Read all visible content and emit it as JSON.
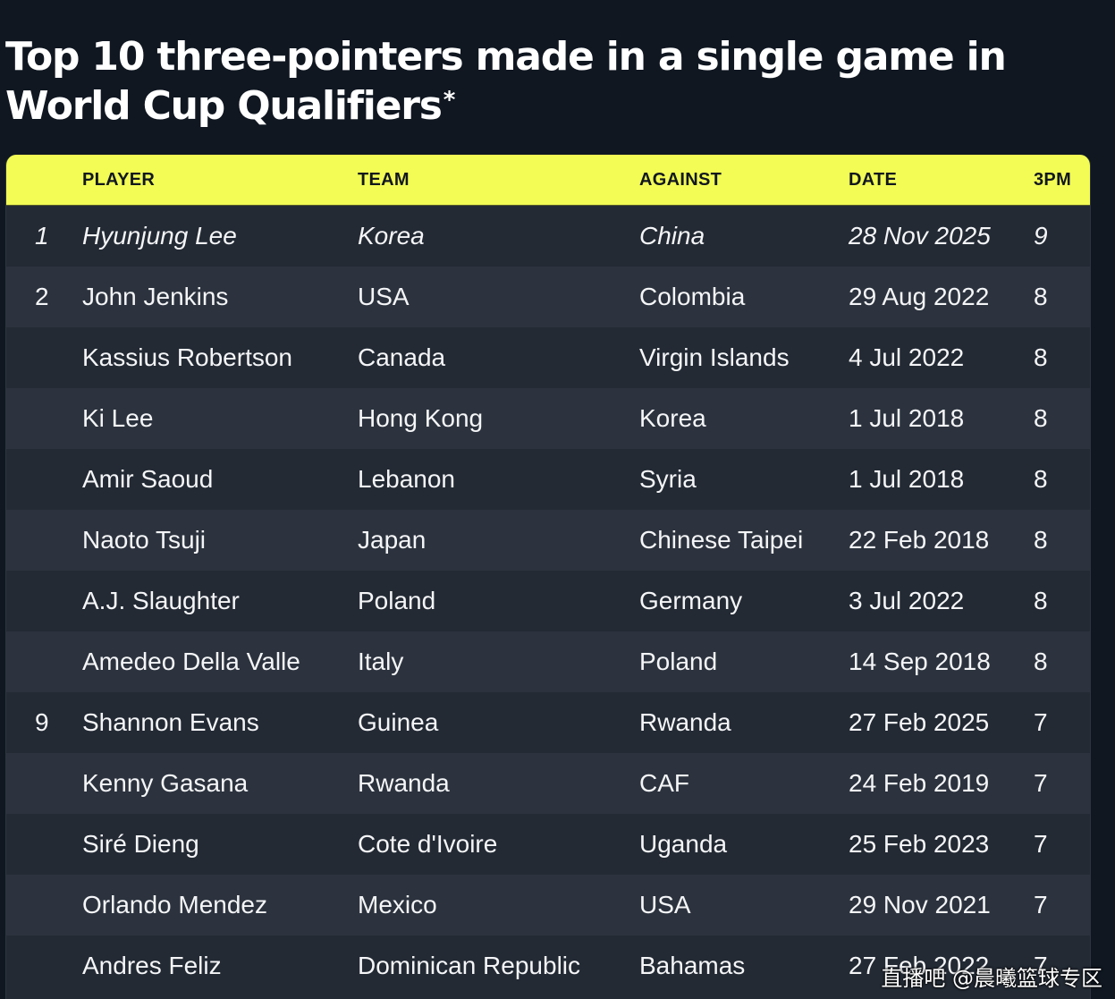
{
  "title": {
    "text": "Top 10 three-pointers made in a single game in World Cup Qualifiers",
    "asterisk": "*"
  },
  "columns": {
    "player": "PLAYER",
    "team": "TEAM",
    "against": "AGAINST",
    "date": "DATE",
    "threepm": "3PM"
  },
  "rows": [
    {
      "rank": "1",
      "player": "Hyunjung Lee",
      "team": "Korea",
      "against": "China",
      "date": "28 Nov 2025",
      "threepm": "9",
      "highlight": true
    },
    {
      "rank": "2",
      "player": "John Jenkins",
      "team": "USA",
      "against": "Colombia",
      "date": "29 Aug 2022",
      "threepm": "8"
    },
    {
      "rank": "",
      "player": "Kassius Robertson",
      "team": "Canada",
      "against": "Virgin Islands",
      "date": "4 Jul 2022",
      "threepm": "8"
    },
    {
      "rank": "",
      "player": "Ki Lee",
      "team": "Hong Kong",
      "against": "Korea",
      "date": "1 Jul 2018",
      "threepm": "8"
    },
    {
      "rank": "",
      "player": "Amir Saoud",
      "team": "Lebanon",
      "against": "Syria",
      "date": "1 Jul 2018",
      "threepm": "8"
    },
    {
      "rank": "",
      "player": "Naoto Tsuji",
      "team": "Japan",
      "against": "Chinese Taipei",
      "date": "22 Feb 2018",
      "threepm": "8"
    },
    {
      "rank": "",
      "player": "A.J. Slaughter",
      "team": "Poland",
      "against": "Germany",
      "date": "3 Jul 2022",
      "threepm": "8"
    },
    {
      "rank": "",
      "player": "Amedeo Della Valle",
      "team": "Italy",
      "against": "Poland",
      "date": "14 Sep 2018",
      "threepm": "8"
    },
    {
      "rank": "9",
      "player": "Shannon Evans",
      "team": "Guinea",
      "against": "Rwanda",
      "date": "27 Feb 2025",
      "threepm": "7"
    },
    {
      "rank": "",
      "player": "Kenny Gasana",
      "team": "Rwanda",
      "against": "CAF",
      "date": "24 Feb 2019",
      "threepm": "7"
    },
    {
      "rank": "",
      "player": "Siré Dieng",
      "team": "Cote d'Ivoire",
      "against": "Uganda",
      "date": "25 Feb 2023",
      "threepm": "7"
    },
    {
      "rank": "",
      "player": "Orlando Mendez",
      "team": "Mexico",
      "against": "USA",
      "date": "29 Nov 2021",
      "threepm": "7"
    },
    {
      "rank": "",
      "player": "Andres Feliz",
      "team": "Dominican Republic",
      "against": "Bahamas",
      "date": "27 Feb 2022",
      "threepm": "7"
    }
  ],
  "watermark": "直播吧 @晨曦篮球专区",
  "colors": {
    "page_background": "#101721",
    "header_background": "#f2fc54",
    "row_odd": "#232a34",
    "row_even": "#2c333e",
    "text": "#f4f5f7",
    "header_text": "#12171f"
  }
}
